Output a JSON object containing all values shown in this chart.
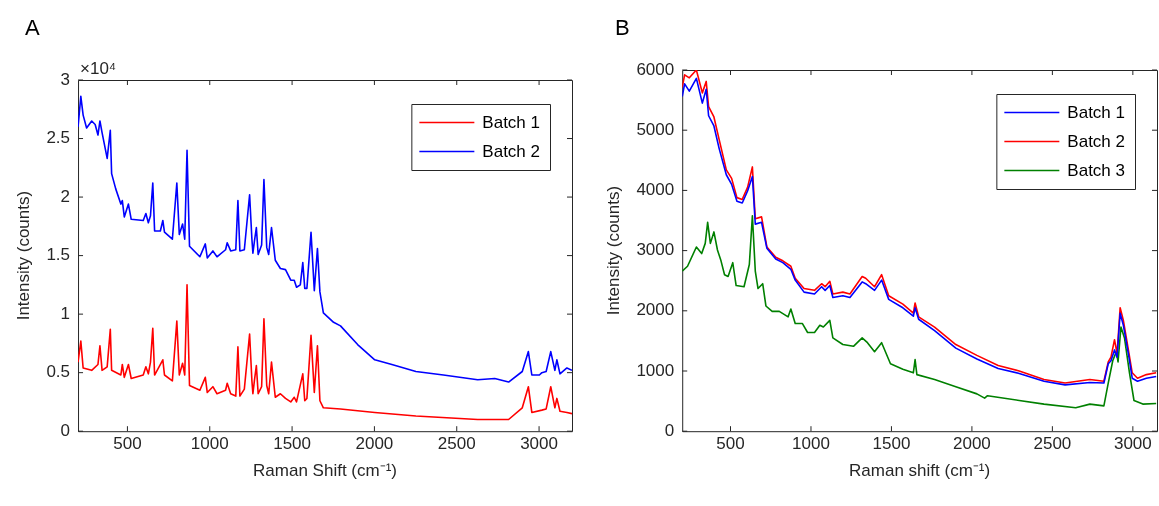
{
  "chart_data": [
    {
      "type": "line",
      "title": "A",
      "xlabel": "Raman Shift (cm⁻¹)",
      "ylabel": "Intensity (counts)",
      "annotations": [
        "×10⁴"
      ],
      "xlim": [
        200,
        3200
      ],
      "xticks": [
        500,
        1000,
        1500,
        2000,
        2500,
        3000
      ],
      "ylim": [
        0,
        3
      ],
      "yticks": [
        0,
        0.5,
        1,
        1.5,
        2,
        2.5,
        3
      ],
      "legend": "top right",
      "series": [
        {
          "name": "Batch 1",
          "color": "#ff0000",
          "x": [
            200,
            217,
            231,
            283,
            321,
            333,
            346,
            377,
            396,
            404,
            460,
            469,
            481,
            506,
            523,
            596,
            612,
            627,
            640,
            654,
            665,
            715,
            725,
            773,
            800,
            815,
            835,
            848,
            862,
            877,
            940,
            973,
            985,
            1019,
            1044,
            1096,
            1106,
            1127,
            1158,
            1171,
            1183,
            1210,
            1242,
            1256,
            1262,
            1271,
            1283,
            1294,
            1315,
            1329,
            1346,
            1358,
            1375,
            1398,
            1429,
            1460,
            1492,
            1513,
            1527,
            1565,
            1577,
            1590,
            1615,
            1635,
            1654,
            1669,
            1690,
            1794,
            2002,
            2252,
            2627,
            2815,
            2898,
            2935,
            2956,
            3017,
            3043,
            3071,
            3096,
            3108,
            3127,
            3169,
            3200
          ],
          "values": [
            0.59,
            0.77,
            0.54,
            0.52,
            0.57,
            0.73,
            0.52,
            0.55,
            0.87,
            0.52,
            0.48,
            0.57,
            0.46,
            0.57,
            0.45,
            0.48,
            0.55,
            0.49,
            0.59,
            0.88,
            0.48,
            0.61,
            0.48,
            0.43,
            0.94,
            0.48,
            0.58,
            0.48,
            1.25,
            0.39,
            0.35,
            0.46,
            0.33,
            0.38,
            0.32,
            0.35,
            0.41,
            0.32,
            0.3,
            0.72,
            0.3,
            0.36,
            0.83,
            0.43,
            0.32,
            0.43,
            0.56,
            0.32,
            0.38,
            0.96,
            0.39,
            0.32,
            0.59,
            0.29,
            0.32,
            0.28,
            0.25,
            0.29,
            0.25,
            0.49,
            0.26,
            0.28,
            0.82,
            0.33,
            0.73,
            0.26,
            0.2,
            0.19,
            0.16,
            0.13,
            0.1,
            0.1,
            0.2,
            0.38,
            0.16,
            0.18,
            0.19,
            0.38,
            0.2,
            0.28,
            0.17,
            0.16,
            0.15
          ]
        },
        {
          "name": "Batch 2",
          "color": "#0000ff",
          "x": [
            200,
            217,
            231,
            252,
            283,
            304,
            321,
            333,
            346,
            377,
            396,
            404,
            429,
            460,
            469,
            481,
            506,
            523,
            596,
            612,
            627,
            640,
            654,
            665,
            700,
            715,
            725,
            773,
            800,
            815,
            835,
            848,
            862,
            877,
            940,
            973,
            985,
            1019,
            1044,
            1096,
            1106,
            1127,
            1158,
            1171,
            1183,
            1210,
            1242,
            1256,
            1262,
            1271,
            1283,
            1294,
            1315,
            1329,
            1346,
            1358,
            1375,
            1398,
            1429,
            1460,
            1492,
            1513,
            1527,
            1550,
            1565,
            1577,
            1590,
            1615,
            1635,
            1654,
            1669,
            1690,
            1752,
            1794,
            1898,
            2002,
            2106,
            2252,
            2419,
            2627,
            2731,
            2815,
            2898,
            2935,
            2956,
            3002,
            3017,
            3043,
            3071,
            3096,
            3108,
            3127,
            3169,
            3200
          ],
          "values": [
            2.6,
            2.86,
            2.7,
            2.59,
            2.65,
            2.62,
            2.53,
            2.65,
            2.55,
            2.33,
            2.57,
            2.2,
            2.07,
            1.94,
            1.97,
            1.83,
            1.94,
            1.81,
            1.8,
            1.86,
            1.78,
            1.84,
            2.12,
            1.71,
            1.71,
            1.8,
            1.7,
            1.64,
            2.12,
            1.68,
            1.77,
            1.64,
            2.4,
            1.58,
            1.49,
            1.6,
            1.48,
            1.54,
            1.49,
            1.55,
            1.61,
            1.54,
            1.55,
            1.97,
            1.54,
            1.55,
            2.02,
            1.64,
            1.52,
            1.62,
            1.74,
            1.51,
            1.59,
            2.15,
            1.57,
            1.51,
            1.74,
            1.46,
            1.39,
            1.38,
            1.29,
            1.29,
            1.23,
            1.25,
            1.44,
            1.22,
            1.22,
            1.7,
            1.2,
            1.56,
            1.19,
            1.01,
            0.93,
            0.9,
            0.74,
            0.61,
            0.57,
            0.51,
            0.48,
            0.44,
            0.45,
            0.42,
            0.51,
            0.68,
            0.48,
            0.48,
            0.5,
            0.51,
            0.68,
            0.52,
            0.61,
            0.49,
            0.54,
            0.52
          ]
        }
      ]
    },
    {
      "type": "line",
      "title": "B",
      "xlabel": "Raman shift (cm⁻¹)",
      "ylabel": "Intensity (counts)",
      "xlim": [
        200,
        3150
      ],
      "xticks": [
        500,
        1000,
        1500,
        2000,
        2500,
        3000
      ],
      "ylim": [
        0,
        6000
      ],
      "yticks": [
        0,
        1000,
        2000,
        3000,
        4000,
        5000,
        6000
      ],
      "legend": "top right",
      "series": [
        {
          "name": "Batch 1",
          "color": "#0000ff",
          "x": [
            200,
            215,
            244,
            288,
            325,
            349,
            364,
            397,
            430,
            474,
            507,
            540,
            573,
            606,
            636,
            654,
            693,
            726,
            781,
            825,
            875,
            902,
            957,
            1022,
            1066,
            1088,
            1117,
            1136,
            1198,
            1242,
            1318,
            1340,
            1395,
            1439,
            1483,
            1571,
            1636,
            1647,
            1669,
            1768,
            1900,
            2031,
            2163,
            2294,
            2448,
            2579,
            2733,
            2820,
            2847,
            2864,
            2886,
            2902,
            2921,
            2941,
            2974,
            2996,
            3029,
            3084,
            3145
          ],
          "values": [
            5560,
            5770,
            5650,
            5860,
            5450,
            5680,
            5240,
            5070,
            4690,
            4260,
            4100,
            3820,
            3790,
            3990,
            4230,
            3440,
            3470,
            3040,
            2860,
            2800,
            2690,
            2510,
            2310,
            2280,
            2400,
            2340,
            2420,
            2220,
            2250,
            2220,
            2480,
            2450,
            2340,
            2510,
            2190,
            2050,
            1910,
            2050,
            1860,
            1670,
            1380,
            1200,
            1040,
            960,
            830,
            770,
            810,
            800,
            1120,
            1170,
            1350,
            1230,
            1960,
            1760,
            1260,
            880,
            830,
            880,
            910
          ]
        },
        {
          "name": "Batch 2",
          "color": "#ff0000",
          "x": [
            200,
            215,
            244,
            288,
            325,
            349,
            364,
            397,
            430,
            474,
            507,
            540,
            573,
            606,
            636,
            654,
            693,
            726,
            781,
            825,
            875,
            902,
            957,
            1022,
            1066,
            1088,
            1117,
            1136,
            1198,
            1242,
            1318,
            1340,
            1395,
            1439,
            1483,
            1571,
            1636,
            1647,
            1669,
            1768,
            1900,
            2031,
            2163,
            2294,
            2448,
            2579,
            2733,
            2820,
            2847,
            2864,
            2886,
            2902,
            2921,
            2941,
            2974,
            2996,
            3029,
            3084,
            3145
          ],
          "values": [
            5710,
            5920,
            5870,
            6000,
            5620,
            5810,
            5390,
            5220,
            4840,
            4340,
            4200,
            3880,
            3850,
            4050,
            4390,
            3530,
            3560,
            3060,
            2890,
            2830,
            2740,
            2540,
            2370,
            2340,
            2450,
            2400,
            2490,
            2280,
            2310,
            2280,
            2570,
            2540,
            2400,
            2600,
            2250,
            2110,
            1960,
            2130,
            1900,
            1730,
            1440,
            1260,
            1090,
            1000,
            860,
            800,
            860,
            830,
            1150,
            1230,
            1520,
            1290,
            2050,
            1840,
            1320,
            970,
            880,
            940,
            970
          ]
        },
        {
          "name": "Batch 3",
          "color": "#008000",
          "x": [
            200,
            233,
            288,
            321,
            343,
            358,
            375,
            397,
            419,
            441,
            463,
            485,
            514,
            535,
            584,
            617,
            636,
            654,
            671,
            700,
            720,
            759,
            803,
            858,
            875,
            902,
            946,
            979,
            1022,
            1055,
            1077,
            1117,
            1136,
            1198,
            1264,
            1318,
            1351,
            1395,
            1439,
            1494,
            1571,
            1636,
            1647,
            1658,
            1768,
            1900,
            2031,
            2079,
            2097,
            2294,
            2448,
            2645,
            2733,
            2820,
            2847,
            2875,
            2897,
            2908,
            2926,
            2948,
            2979,
            3007,
            3062,
            3145
          ],
          "values": [
            2660,
            2740,
            3060,
            2950,
            3120,
            3470,
            3120,
            3310,
            3010,
            2830,
            2600,
            2570,
            2800,
            2420,
            2400,
            2770,
            3580,
            2660,
            2370,
            2450,
            2080,
            1990,
            1990,
            1900,
            2030,
            1790,
            1790,
            1640,
            1640,
            1760,
            1730,
            1840,
            1550,
            1440,
            1410,
            1550,
            1470,
            1320,
            1470,
            1120,
            1030,
            970,
            1190,
            940,
            860,
            740,
            620,
            550,
            590,
            510,
            450,
            390,
            450,
            420,
            800,
            1170,
            1320,
            1150,
            1730,
            1550,
            970,
            510,
            450,
            460
          ]
        }
      ]
    }
  ]
}
